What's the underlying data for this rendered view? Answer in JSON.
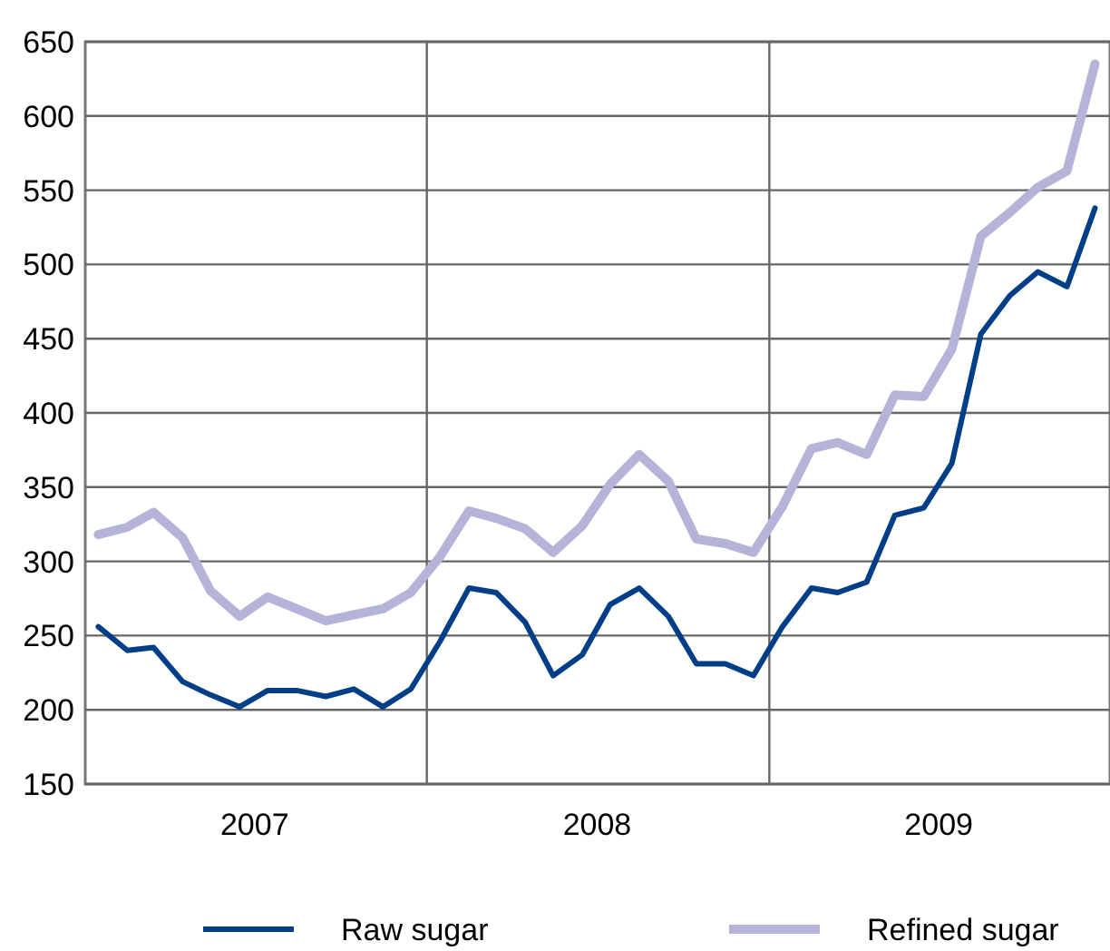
{
  "chart_data": {
    "type": "line",
    "x": [
      "2007-01-15",
      "2007-02-15",
      "2007-03-15",
      "2007-04-15",
      "2007-05-15",
      "2007-06-15",
      "2007-07-15",
      "2007-08-15",
      "2007-09-15",
      "2007-10-15",
      "2007-11-15",
      "2007-12-15",
      "2008-01-15",
      "2008-02-15",
      "2008-03-15",
      "2008-04-15",
      "2008-05-15",
      "2008-06-15",
      "2008-07-15",
      "2008-08-15",
      "2008-09-15",
      "2008-10-15",
      "2008-11-15",
      "2008-12-15",
      "2009-01-15",
      "2009-02-15",
      "2009-03-15",
      "2009-04-15",
      "2009-05-15",
      "2009-06-15",
      "2009-07-15",
      "2009-08-15",
      "2009-09-15",
      "2009-10-15",
      "2009-11-15",
      "2009-12-15"
    ],
    "series": [
      {
        "name": "Raw sugar",
        "color": "#003f87",
        "values": [
          256,
          240,
          242,
          219,
          210,
          202,
          213,
          213,
          209,
          214,
          202,
          214,
          246,
          282,
          279,
          259,
          223,
          237,
          271,
          282,
          263,
          231,
          231,
          223,
          256,
          282,
          279,
          286,
          331,
          336,
          366,
          453,
          479,
          495,
          485,
          538
        ]
      },
      {
        "name": "Refined sugar",
        "color": "#b4b4d8",
        "values": [
          318,
          323,
          333,
          316,
          280,
          263,
          276,
          268,
          260,
          264,
          268,
          279,
          303,
          334,
          329,
          322,
          306,
          324,
          352,
          372,
          354,
          315,
          312,
          306,
          337,
          376,
          380,
          372,
          412,
          411,
          443,
          519,
          535,
          552,
          563,
          635
        ]
      }
    ],
    "xlim": [
      "2007-01-01",
      "2009-12-31"
    ],
    "xticks": [
      {
        "value": "2007-07-01",
        "label": "2007"
      },
      {
        "value": "2008-01-01",
        "label": null
      },
      {
        "value": "2008-07-01",
        "label": "2008"
      },
      {
        "value": "2009-01-01",
        "label": null
      },
      {
        "value": "2009-07-01",
        "label": "2009"
      }
    ],
    "ylim": [
      150,
      650
    ],
    "yticks": [
      150,
      200,
      250,
      300,
      350,
      400,
      450,
      500,
      550,
      600,
      650
    ],
    "grid": true,
    "legend": "bottom",
    "marker": "none",
    "line_style": "solid"
  }
}
